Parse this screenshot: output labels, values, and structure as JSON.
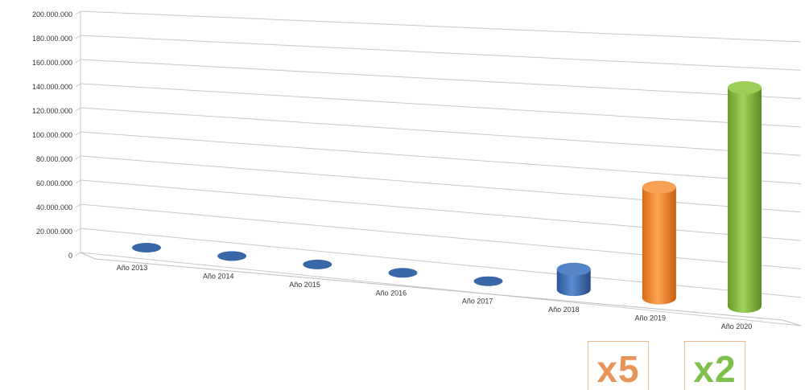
{
  "chart_data": {
    "type": "bar",
    "style": "3d-cylinder",
    "title": "",
    "xlabel": "",
    "ylabel": "",
    "categories": [
      "Año 2013",
      "Año 2014",
      "Año 2015",
      "Año 2016",
      "Año 2017",
      "Año 2018",
      "Año 2019",
      "Año 2020"
    ],
    "values": [
      500000,
      500000,
      500000,
      500000,
      500000,
      15000000,
      80000000,
      155000000
    ],
    "bar_colors": [
      "#3d6eb0",
      "#3d6eb0",
      "#3d6eb0",
      "#3d6eb0",
      "#3d6eb0",
      "#3d6eb0",
      "#f38a2c",
      "#85b840"
    ],
    "ylim": [
      0,
      200000000
    ],
    "yticks": [
      "0",
      "20.000.000",
      "40.000.000",
      "60.000.000",
      "80.000.000",
      "100.000.000",
      "120.000.000",
      "140.000.000",
      "160.000.000",
      "180.000.000",
      "200.000.000"
    ],
    "grid": true,
    "legend": "none"
  },
  "multipliers": [
    {
      "text": "x5",
      "color": "#e8955a"
    },
    {
      "text": "x2",
      "color": "#7fbf4c"
    }
  ]
}
